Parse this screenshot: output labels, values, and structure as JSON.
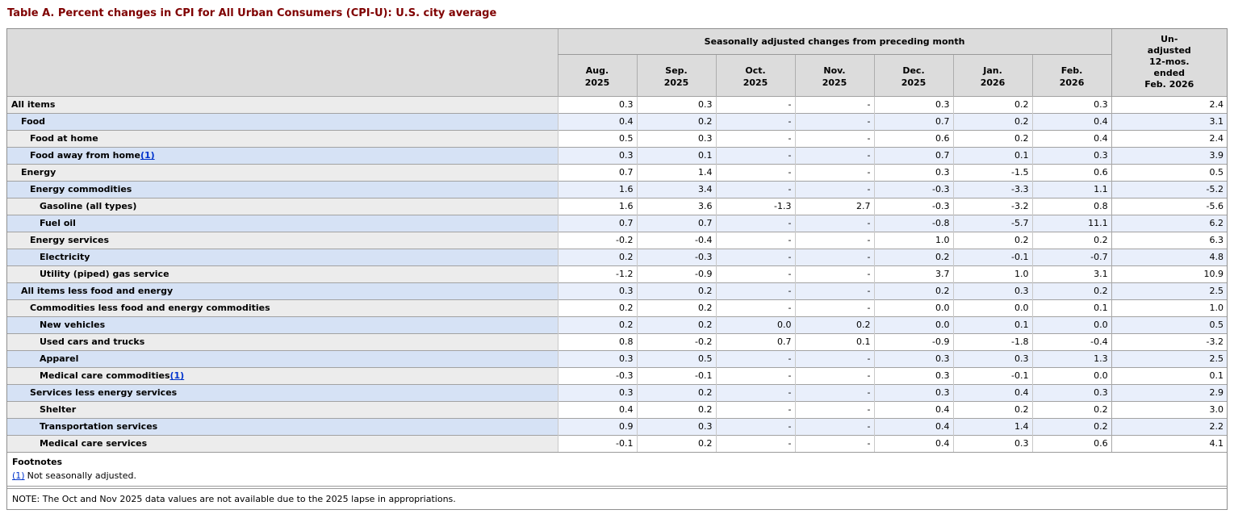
{
  "page_title": "Table A. Percent changes in CPI for All Urban Consumers (CPI-U): U.S. city average",
  "table": {
    "group_header": "Seasonally adjusted changes from preceding month",
    "unadjusted_header": "Un-\nadjusted\n12-mos.\nended\nFeb. 2026",
    "columns": [
      "Aug.\n2025",
      "Sep.\n2025",
      "Oct.\n2025",
      "Nov.\n2025",
      "Dec.\n2025",
      "Jan.\n2026",
      "Feb.\n2026"
    ],
    "rows": [
      {
        "label": "All items",
        "indent": 0,
        "values": [
          "0.3",
          "0.3",
          "-",
          "-",
          "0.3",
          "0.2",
          "0.3",
          "2.4"
        ]
      },
      {
        "label": "Food",
        "indent": 1,
        "values": [
          "0.4",
          "0.2",
          "-",
          "-",
          "0.7",
          "0.2",
          "0.4",
          "3.1"
        ]
      },
      {
        "label": "Food at home",
        "indent": 2,
        "values": [
          "0.5",
          "0.3",
          "-",
          "-",
          "0.6",
          "0.2",
          "0.4",
          "2.4"
        ]
      },
      {
        "label": "Food away from home",
        "indent": 2,
        "footnote_marker": "(1)",
        "values": [
          "0.3",
          "0.1",
          "-",
          "-",
          "0.7",
          "0.1",
          "0.3",
          "3.9"
        ]
      },
      {
        "label": "Energy",
        "indent": 1,
        "values": [
          "0.7",
          "1.4",
          "-",
          "-",
          "0.3",
          "-1.5",
          "0.6",
          "0.5"
        ]
      },
      {
        "label": "Energy commodities",
        "indent": 2,
        "values": [
          "1.6",
          "3.4",
          "-",
          "-",
          "-0.3",
          "-3.3",
          "1.1",
          "-5.2"
        ]
      },
      {
        "label": "Gasoline (all types)",
        "indent": 3,
        "values": [
          "1.6",
          "3.6",
          "-1.3",
          "2.7",
          "-0.3",
          "-3.2",
          "0.8",
          "-5.6"
        ]
      },
      {
        "label": "Fuel oil",
        "indent": 3,
        "values": [
          "0.7",
          "0.7",
          "-",
          "-",
          "-0.8",
          "-5.7",
          "11.1",
          "6.2"
        ]
      },
      {
        "label": "Energy services",
        "indent": 2,
        "values": [
          "-0.2",
          "-0.4",
          "-",
          "-",
          "1.0",
          "0.2",
          "0.2",
          "6.3"
        ]
      },
      {
        "label": "Electricity",
        "indent": 3,
        "values": [
          "0.2",
          "-0.3",
          "-",
          "-",
          "0.2",
          "-0.1",
          "-0.7",
          "4.8"
        ]
      },
      {
        "label": "Utility (piped) gas service",
        "indent": 3,
        "values": [
          "-1.2",
          "-0.9",
          "-",
          "-",
          "3.7",
          "1.0",
          "3.1",
          "10.9"
        ]
      },
      {
        "label": "All items less food and energy",
        "indent": 1,
        "values": [
          "0.3",
          "0.2",
          "-",
          "-",
          "0.2",
          "0.3",
          "0.2",
          "2.5"
        ]
      },
      {
        "label": "Commodities less food and energy commodities",
        "indent": 2,
        "values": [
          "0.2",
          "0.2",
          "-",
          "-",
          "0.0",
          "0.0",
          "0.1",
          "1.0"
        ]
      },
      {
        "label": "New vehicles",
        "indent": 3,
        "values": [
          "0.2",
          "0.2",
          "0.0",
          "0.2",
          "0.0",
          "0.1",
          "0.0",
          "0.5"
        ]
      },
      {
        "label": "Used cars and trucks",
        "indent": 3,
        "values": [
          "0.8",
          "-0.2",
          "0.7",
          "0.1",
          "-0.9",
          "-1.8",
          "-0.4",
          "-3.2"
        ]
      },
      {
        "label": "Apparel",
        "indent": 3,
        "values": [
          "0.3",
          "0.5",
          "-",
          "-",
          "0.3",
          "0.3",
          "1.3",
          "2.5"
        ]
      },
      {
        "label": "Medical care commodities",
        "indent": 3,
        "footnote_marker": "(1)",
        "values": [
          "-0.3",
          "-0.1",
          "-",
          "-",
          "0.3",
          "-0.1",
          "0.0",
          "0.1"
        ]
      },
      {
        "label": "Services less energy services",
        "indent": 2,
        "values": [
          "0.3",
          "0.2",
          "-",
          "-",
          "0.3",
          "0.4",
          "0.3",
          "2.9"
        ]
      },
      {
        "label": "Shelter",
        "indent": 3,
        "values": [
          "0.4",
          "0.2",
          "-",
          "-",
          "0.4",
          "0.2",
          "0.2",
          "3.0"
        ]
      },
      {
        "label": "Transportation services",
        "indent": 3,
        "values": [
          "0.9",
          "0.3",
          "-",
          "-",
          "0.4",
          "1.4",
          "0.2",
          "2.2"
        ]
      },
      {
        "label": "Medical care services",
        "indent": 3,
        "values": [
          "-0.1",
          "0.2",
          "-",
          "-",
          "0.4",
          "0.3",
          "0.6",
          "4.1"
        ]
      }
    ]
  },
  "footnotes": {
    "heading": "Footnotes",
    "items": [
      {
        "marker": "(1)",
        "text": "Not seasonally adjusted."
      }
    ]
  },
  "note": "NOTE: The Oct and Nov 2025 data values are not available due to the 2025 lapse in appropriations.",
  "colors": {
    "title_text": "#7f0000",
    "header_bg": "#dcdcdc",
    "row_gray_label_bg": "#ececec",
    "row_blue_label_bg": "#d6e2f5",
    "row_gray_value_bg": "#ffffff",
    "row_blue_value_bg": "#e9effb",
    "footnote_link": "#0033cc",
    "border_dark": "#9a9a9a",
    "border_light": "#c9c9c9"
  }
}
